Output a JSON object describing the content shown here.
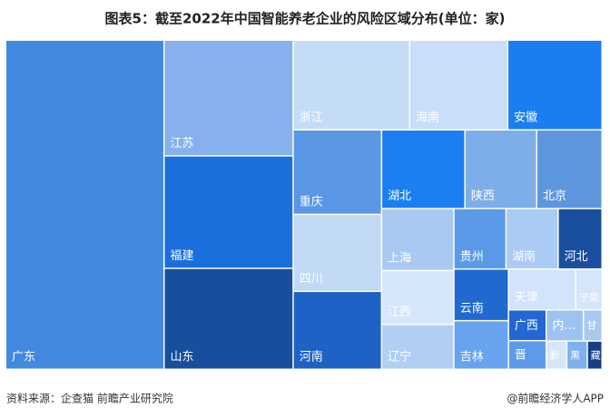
{
  "chart_data": {
    "type": "treemap",
    "title": "图表5：截至2022年中国智能养老企业的风险区域分布(单位：家)",
    "categories": [
      "广东",
      "江苏",
      "福建",
      "山东",
      "浙江",
      "海南",
      "安徽",
      "重庆",
      "四川",
      "河南",
      "湖北",
      "陕西",
      "北京",
      "上海",
      "江西",
      "辽宁",
      "贵州",
      "湖南",
      "河北",
      "云南",
      "吉林",
      "天津",
      "宁夏",
      "广西",
      "晋",
      "内...",
      "甘",
      "新",
      "黑",
      "藏"
    ],
    "values": [
      628,
      180,
      175,
      157,
      126,
      106,
      102,
      90,
      82,
      83,
      79,
      68,
      62,
      54,
      47,
      39,
      38,
      38,
      32,
      34,
      32,
      33,
      13,
      14,
      13,
      14,
      7,
      7,
      7,
      5
    ],
    "colors": [
      "#4289e1",
      "#86b1ee",
      "#1a6fdc",
      "#174f9e",
      "#c5dcf7",
      "#c9defa",
      "#1a7ef0",
      "#5a96e4",
      "#c2d9f6",
      "#1f62c6",
      "#1a7ff0",
      "#7eaee9",
      "#5e96dd",
      "#a9c9f3",
      "#d6e6fb",
      "#b1cef4",
      "#5b9ae8",
      "#aacbf3",
      "#1a4f9f",
      "#2169cf",
      "#67a3ee",
      "#d2e4fb",
      "#d5e5fa",
      "#2267d2",
      "#5d9bea",
      "#9fc3f0",
      "#aac9f0",
      "#d7e6fa",
      "#7db0ef",
      "#163f86"
    ],
    "source": "资料来源：企查猫 前瞻产业研究院",
    "credit": "@前瞻经济学人APP"
  }
}
